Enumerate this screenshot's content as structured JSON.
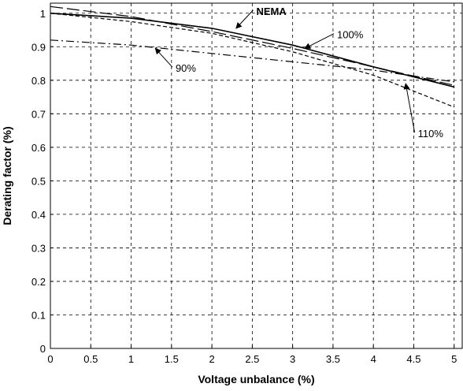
{
  "chart_data": {
    "type": "line",
    "title": "",
    "xlabel": "Voltage unbalance (%)",
    "ylabel": "Derating factor (%)",
    "xlim": [
      0,
      5.1
    ],
    "ylim": [
      0,
      1.03
    ],
    "xticks": [
      0,
      0.5,
      1,
      1.5,
      2,
      2.5,
      3,
      3.5,
      4,
      4.5,
      5
    ],
    "xtick_labels": [
      "0",
      "0.5",
      "1",
      "1.5",
      "2",
      "2.5",
      "3",
      "3.5",
      "4",
      "4.5",
      "5"
    ],
    "yticks": [
      0,
      0.1,
      0.2,
      0.3,
      0.4,
      0.5,
      0.6,
      0.7,
      0.8,
      0.9,
      1
    ],
    "ytick_labels": [
      "0",
      "0.1",
      "0.2",
      "0.3",
      "0.4",
      "0.5",
      "0.6",
      "0.7",
      "0.8",
      "0.9",
      "1"
    ],
    "grid": true,
    "line_color": "#000000",
    "series": [
      {
        "name": "NEMA",
        "style": "solid",
        "x": [
          0,
          1,
          2,
          3,
          4,
          5
        ],
        "y": [
          1.0,
          0.985,
          0.955,
          0.905,
          0.84,
          0.78
        ]
      },
      {
        "name": "100%",
        "style": "long-dash",
        "x": [
          0,
          1,
          2,
          3,
          4,
          5
        ],
        "y": [
          1.02,
          0.99,
          0.945,
          0.895,
          0.84,
          0.785
        ]
      },
      {
        "name": "90%",
        "style": "dash-dot",
        "x": [
          0,
          1,
          2,
          3,
          4,
          5
        ],
        "y": [
          0.92,
          0.905,
          0.88,
          0.855,
          0.83,
          0.795
        ]
      },
      {
        "name": "110%",
        "style": "short-dash",
        "x": [
          0,
          1,
          2,
          3,
          4,
          5
        ],
        "y": [
          1.0,
          0.975,
          0.94,
          0.885,
          0.815,
          0.72
        ]
      }
    ],
    "annotations": [
      {
        "text": "NEMA",
        "bold": true,
        "x": 2.55,
        "y": 0.995,
        "arrow_to": [
          2.3,
          0.955
        ]
      },
      {
        "text": "100%",
        "bold": false,
        "x": 3.55,
        "y": 0.925,
        "arrow_to": [
          3.15,
          0.895
        ]
      },
      {
        "text": "90%",
        "bold": false,
        "x": 1.55,
        "y": 0.825,
        "arrow_to": [
          1.3,
          0.895
        ]
      },
      {
        "text": "110%",
        "bold": false,
        "x": 4.55,
        "y": 0.63,
        "arrow_to": [
          4.4,
          0.79
        ]
      }
    ]
  }
}
